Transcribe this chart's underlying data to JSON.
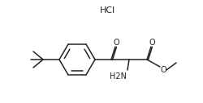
{
  "bg_color": "#ffffff",
  "line_color": "#222222",
  "line_width": 1.1,
  "font_size_label": 7.0,
  "font_size_hcl": 8.0,
  "hcl_text": "HCl",
  "nh2_text": "H2N",
  "o_ketone": "O",
  "o_ester_top": "O",
  "o_ester_bot": "O"
}
